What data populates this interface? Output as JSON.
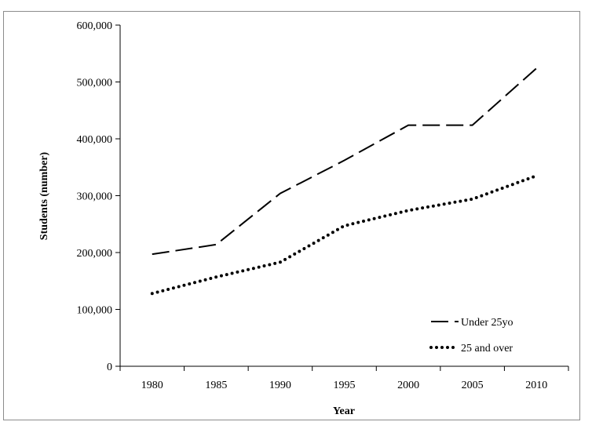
{
  "chart_data": {
    "type": "line",
    "title": "",
    "xlabel": "Year",
    "ylabel": "Students (number)",
    "categories": [
      "1980",
      "1985",
      "1990",
      "1995",
      "2000",
      "2005",
      "2010"
    ],
    "ylim": [
      0,
      600000
    ],
    "yticks": [
      0,
      100000,
      200000,
      300000,
      400000,
      500000,
      600000
    ],
    "ytick_labels": [
      "0",
      "100,000",
      "200,000",
      "300,000",
      "400,000",
      "500,000",
      "600,000"
    ],
    "grid": false,
    "legend_position": "bottom-right",
    "series": [
      {
        "name": "Under 25yo",
        "values": [
          197000,
          214000,
          304000,
          362000,
          424000,
          424000,
          524000
        ],
        "style": "dashed",
        "color": "#000000"
      },
      {
        "name": "25 and over",
        "values": [
          128000,
          157000,
          183000,
          247000,
          274000,
          294000,
          335000
        ],
        "style": "dotted",
        "color": "#000000"
      }
    ]
  }
}
